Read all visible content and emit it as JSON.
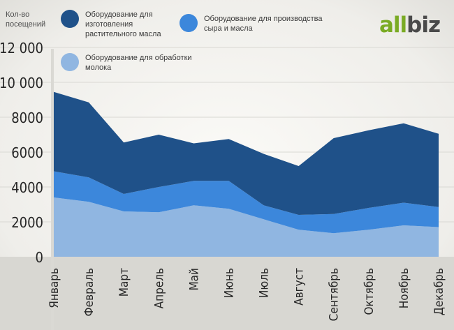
{
  "header": {
    "ylabel": "Кол-во посещений",
    "logo_part1": "all",
    "logo_part2": "biz"
  },
  "colors": {
    "series_dark": "#1f5189",
    "series_mid": "#3c87db",
    "series_light": "#90b6e1",
    "logo_green": "#7aab24",
    "logo_gray": "#4a4a4a"
  },
  "chart_data": {
    "type": "area",
    "stacked": true,
    "title": "",
    "xlabel": "",
    "ylabel": "Кол-во посещений",
    "ylim": [
      0,
      12000
    ],
    "yticks": [
      0,
      2000,
      4000,
      6000,
      8000,
      10000,
      12000
    ],
    "ytick_labels": [
      "0",
      "2000",
      "4000",
      "6000",
      "8000",
      "10 000",
      "12 000"
    ],
    "grid": true,
    "legend_position": "top-left",
    "categories": [
      "Январь",
      "Февраль",
      "Март",
      "Апрель",
      "Май",
      "Июнь",
      "Июль",
      "Август",
      "Сентябрь",
      "Октябрь",
      "Ноябрь",
      "Декабрь"
    ],
    "series": [
      {
        "name": "Оборудование для обработки молока",
        "color": "#90b6e1",
        "values": [
          3400,
          3150,
          2600,
          2550,
          2950,
          2750,
          2150,
          1550,
          1350,
          1550,
          1800,
          1700
        ]
      },
      {
        "name": "Оборудование для производства сыра и масла",
        "color": "#3c87db",
        "values": [
          1500,
          1400,
          1000,
          1450,
          1400,
          1600,
          800,
          850,
          1100,
          1250,
          1300,
          1150
        ]
      },
      {
        "name": "Оборудование для изготовления растительного масла",
        "color": "#1f5189",
        "values": [
          4550,
          4300,
          2950,
          3000,
          2150,
          2400,
          2950,
          2800,
          4350,
          4450,
          4550,
          4200
        ]
      }
    ],
    "legend": [
      {
        "label": "Оборудование для изготовления растительного масла",
        "color": "#1f5189"
      },
      {
        "label": "Оборудование для производства сыра и масла",
        "color": "#3c87db"
      },
      {
        "label": "Оборудование для обработки молока",
        "color": "#90b6e1"
      }
    ]
  }
}
